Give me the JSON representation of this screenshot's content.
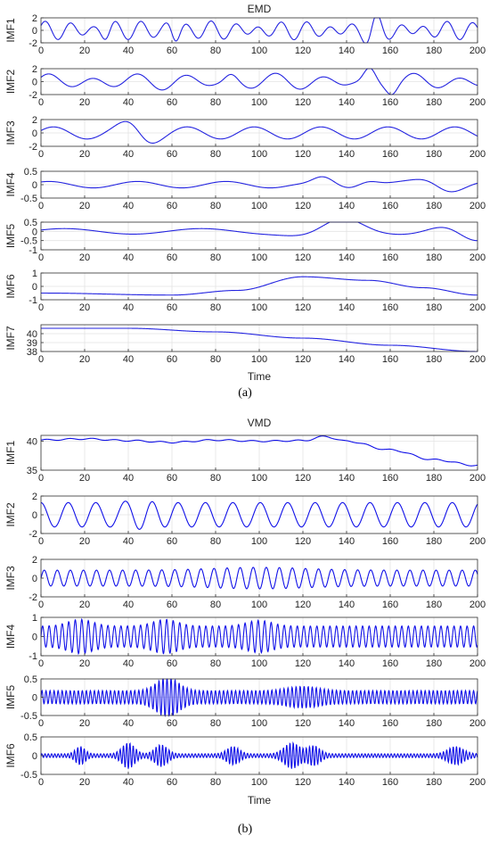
{
  "captions": [
    "(a)",
    "(b)"
  ],
  "chart_data": [
    {
      "type": "line",
      "panel_title": "EMD",
      "xlabel": "Time",
      "xlim": [
        0,
        200
      ],
      "xticks": [
        0,
        20,
        40,
        60,
        80,
        100,
        120,
        140,
        160,
        180,
        200
      ],
      "grid": true,
      "line_color": "#2323e0",
      "subplots": [
        {
          "ylabel": "IMF1",
          "ylim": [
            -2,
            2
          ],
          "yticks": [
            -2,
            0,
            2
          ],
          "components": [
            [
              1.0,
              0.58,
              0.3
            ],
            [
              0.5,
              0.41,
              1.2
            ]
          ],
          "bursts": [
            [
              1.3,
              61,
              4
            ],
            [
              1.3,
              152,
              5
            ],
            [
              0.8,
              30,
              4
            ]
          ],
          "sample_points": [
            [
              0,
              0.2
            ],
            [
              20,
              0.6
            ],
            [
              40,
              -0.5
            ],
            [
              60,
              1.2
            ],
            [
              65,
              -1.4
            ],
            [
              80,
              0.5
            ],
            [
              100,
              -0.3
            ],
            [
              120,
              0.9
            ],
            [
              150,
              -1.8
            ],
            [
              154,
              1.5
            ],
            [
              200,
              0.3
            ]
          ]
        },
        {
          "ylabel": "IMF2",
          "ylim": [
            -2,
            2
          ],
          "yticks": [
            -2,
            0,
            2
          ],
          "components": [
            [
              0.9,
              0.3,
              0.7
            ],
            [
              0.4,
              0.19,
              0.2
            ]
          ],
          "bursts": [
            [
              1.6,
              150,
              5
            ],
            [
              1.0,
              160,
              4
            ],
            [
              0.7,
              86,
              5
            ]
          ],
          "sample_points": [
            [
              0,
              0.1
            ],
            [
              40,
              0.8
            ],
            [
              80,
              -1.2
            ],
            [
              100,
              0.9
            ],
            [
              145,
              -1.8
            ],
            [
              152,
              2.4
            ],
            [
              160,
              -2.0
            ],
            [
              200,
              0.5
            ]
          ]
        },
        {
          "ylabel": "IMF3",
          "ylim": [
            -2,
            2
          ],
          "yticks": [
            -2,
            0,
            2
          ],
          "components": [
            [
              0.9,
              0.205,
              0.4
            ]
          ],
          "bursts": [
            [
              1.2,
              44,
              10
            ]
          ],
          "sample_points": [
            [
              0,
              0
            ],
            [
              36,
              2.1
            ],
            [
              44,
              -2.0
            ],
            [
              52,
              2.1
            ],
            [
              100,
              0.8
            ],
            [
              150,
              -0.2
            ],
            [
              200,
              1.2
            ]
          ]
        },
        {
          "ylabel": "IMF4",
          "ylim": [
            -0.5,
            0.5
          ],
          "yticks": [
            -0.5,
            0,
            0.5
          ],
          "components": [
            [
              0.12,
              0.155,
              1.0
            ]
          ],
          "bursts": [
            [
              0.22,
              128,
              8
            ],
            [
              0.25,
              182,
              12
            ],
            [
              -0.22,
              148,
              9
            ]
          ],
          "sample_points": [
            [
              0,
              0.1
            ],
            [
              8,
              0.2
            ],
            [
              40,
              -0.1
            ],
            [
              128,
              0.35
            ],
            [
              148,
              -0.38
            ],
            [
              180,
              0.3
            ],
            [
              200,
              -0.2
            ]
          ]
        },
        {
          "ylabel": "IMF5",
          "ylim": [
            -1,
            0.5
          ],
          "yticks": [
            -1,
            -0.5,
            0,
            0.5
          ],
          "yticklabels": [
            "-1",
            "-0.5",
            "0",
            "0.5"
          ],
          "components": [
            [
              0.15,
              0.1,
              0.5
            ]
          ],
          "bursts": [
            [
              0.6,
              135,
              18
            ],
            [
              -0.8,
              195,
              15
            ]
          ],
          "sample_points": [
            [
              0,
              0.2
            ],
            [
              40,
              0.05
            ],
            [
              80,
              0.2
            ],
            [
              100,
              0.0
            ],
            [
              134,
              0.62
            ],
            [
              160,
              0.0
            ],
            [
              200,
              -1.0
            ]
          ]
        },
        {
          "ylabel": "IMF6",
          "ylim": [
            -1,
            1
          ],
          "yticks": [
            -1,
            0,
            1
          ],
          "curve": [
            [
              0,
              -0.5
            ],
            [
              60,
              -0.65
            ],
            [
              90,
              -0.3
            ],
            [
              120,
              0.72
            ],
            [
              150,
              0.45
            ],
            [
              175,
              -0.1
            ],
            [
              200,
              -0.65
            ]
          ],
          "sample_points": [
            [
              0,
              -0.5
            ],
            [
              60,
              -0.65
            ],
            [
              120,
              0.72
            ],
            [
              200,
              -0.65
            ]
          ]
        },
        {
          "ylabel": "IMF7",
          "ylim": [
            38,
            41
          ],
          "yticks": [
            38,
            39,
            40
          ],
          "curve": [
            [
              0,
              40.6
            ],
            [
              40,
              40.6
            ],
            [
              80,
              40.2
            ],
            [
              120,
              39.5
            ],
            [
              160,
              38.7
            ],
            [
              200,
              38.0
            ]
          ],
          "sample_points": [
            [
              0,
              40.6
            ],
            [
              40,
              40.6
            ],
            [
              100,
              39.9
            ],
            [
              200,
              38.0
            ]
          ]
        }
      ]
    },
    {
      "type": "line",
      "panel_title": "VMD",
      "xlabel": "Time",
      "xlim": [
        0,
        200
      ],
      "xticks": [
        0,
        20,
        40,
        60,
        80,
        100,
        120,
        140,
        160,
        180,
        200
      ],
      "grid": true,
      "line_color": "#1010e8",
      "subplots": [
        {
          "ylabel": "IMF1",
          "ylim": [
            35,
            41
          ],
          "yticks": [
            35,
            40
          ],
          "curve": [
            [
              0,
              40.2
            ],
            [
              20,
              40.4
            ],
            [
              40,
              40.1
            ],
            [
              60,
              39.8
            ],
            [
              80,
              40.2
            ],
            [
              100,
              40.0
            ],
            [
              120,
              40.1
            ],
            [
              130,
              40.8
            ],
            [
              140,
              40.0
            ],
            [
              160,
              38.5
            ],
            [
              180,
              36.8
            ],
            [
              200,
              35.8
            ]
          ],
          "components": [
            [
              0.12,
              0.6,
              0
            ]
          ],
          "sample_points": [
            [
              0,
              40.2
            ],
            [
              130,
              40.8
            ],
            [
              200,
              35.8
            ]
          ]
        },
        {
          "ylabel": "IMF2",
          "ylim": [
            -2,
            2
          ],
          "yticks": [
            -2,
            0,
            2
          ],
          "components": [
            [
              1.3,
              0.5,
              1.6
            ]
          ],
          "bursts": [
            [
              0.9,
              44,
              10
            ]
          ],
          "sample_points": [
            [
              0,
              -1.5
            ],
            [
              36,
              2.0
            ],
            [
              44,
              -2.0
            ],
            [
              52,
              1.8
            ],
            [
              100,
              1.2
            ],
            [
              200,
              0.3
            ]
          ]
        },
        {
          "ylabel": "IMF3",
          "ylim": [
            -2,
            2
          ],
          "yticks": [
            -2,
            0,
            2
          ],
          "components": [
            [
              0.85,
              1.05,
              0
            ]
          ],
          "bursts": [
            [
              0.3,
              100,
              30
            ]
          ],
          "sample_points": [
            [
              0,
              0.3
            ],
            [
              100,
              1.0
            ],
            [
              200,
              0.8
            ]
          ]
        },
        {
          "ylabel": "IMF4",
          "ylim": [
            -1,
            1
          ],
          "yticks": [
            -1,
            0,
            1
          ],
          "components": [
            [
              0.55,
              2.1,
              0
            ]
          ],
          "bursts": [
            [
              0.35,
              18,
              8
            ],
            [
              0.35,
              57,
              8
            ],
            [
              0.3,
              100,
              8
            ]
          ],
          "sample_points": [
            [
              0,
              0.6
            ],
            [
              18,
              0.9
            ],
            [
              100,
              0.9
            ],
            [
              140,
              0.1
            ],
            [
              200,
              0.4
            ]
          ]
        },
        {
          "ylabel": "IMF5",
          "ylim": [
            -0.5,
            0.5
          ],
          "yticks": [
            -0.5,
            0,
            0.5
          ],
          "components": [
            [
              0.18,
              3.4,
              0
            ]
          ],
          "bursts": [
            [
              0.38,
              58,
              7
            ],
            [
              0.12,
              120,
              10
            ]
          ],
          "sample_points": [
            [
              0,
              0.2
            ],
            [
              58,
              0.55
            ],
            [
              120,
              0.3
            ],
            [
              200,
              0.2
            ]
          ]
        },
        {
          "ylabel": "IMF6",
          "ylim": [
            -0.5,
            0.5
          ],
          "yticks": [
            -0.5,
            0,
            0.5
          ],
          "components": [
            [
              0.05,
              4.2,
              0
            ]
          ],
          "bursts": [
            [
              0.3,
              40,
              4
            ],
            [
              0.25,
              55,
              4
            ],
            [
              0.3,
              115,
              5
            ],
            [
              0.22,
              125,
              4
            ],
            [
              0.2,
              18,
              3
            ],
            [
              0.2,
              88,
              4
            ],
            [
              0.2,
              190,
              5
            ]
          ],
          "sample_points": [
            [
              0,
              0.05
            ],
            [
              40,
              0.45
            ],
            [
              115,
              0.4
            ],
            [
              200,
              0.3
            ]
          ]
        }
      ]
    }
  ]
}
